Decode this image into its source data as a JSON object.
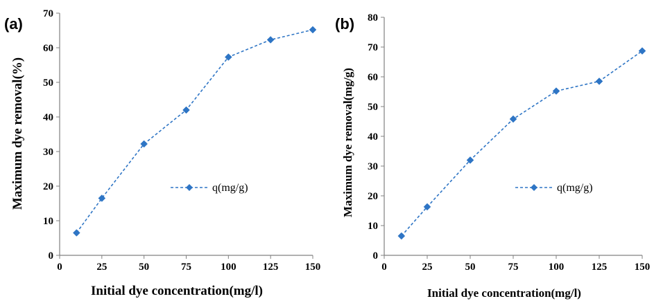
{
  "panels": [
    {
      "label": "(a)",
      "ylabel": "Maximum dye removal(%)",
      "xlabel": "Initial dye concentration(mg/l)",
      "legend": "q(mg/g)"
    },
    {
      "label": "(b)",
      "ylabel": "Maximum dye removal(mg/g)",
      "xlabel": "Initial dye concentration(mg/l)",
      "legend": "q(mg/g)"
    }
  ],
  "chart_data": [
    {
      "type": "line",
      "title": "",
      "xlabel": "Initial dye concentration(mg/l)",
      "ylabel": "Maximum dye removal(%)",
      "xlim": [
        0,
        150
      ],
      "ylim": [
        0,
        70
      ],
      "xticks": [
        "0",
        "25",
        "50",
        "75",
        "100",
        "125",
        "150"
      ],
      "yticks": [
        "0",
        "10",
        "20",
        "30",
        "40",
        "50",
        "60",
        "70"
      ],
      "grid": false,
      "legend_position": "center-right",
      "color": "#2E75C5",
      "line_style": "dashed",
      "marker": "diamond",
      "series": [
        {
          "name": "q(mg/g)",
          "x": [
            10,
            25,
            50,
            75,
            100,
            125,
            150
          ],
          "y": [
            6.5,
            16.5,
            32.2,
            42.0,
            57.3,
            62.3,
            65.2
          ]
        }
      ]
    },
    {
      "type": "line",
      "title": "",
      "xlabel": "Initial dye concentration(mg/l)",
      "ylabel": "Maximum dye removal(mg/g)",
      "xlim": [
        0,
        150
      ],
      "ylim": [
        0,
        80
      ],
      "xticks": [
        "0",
        "25",
        "50",
        "75",
        "100",
        "125",
        "150"
      ],
      "yticks": [
        "0",
        "10",
        "20",
        "30",
        "40",
        "50",
        "60",
        "70",
        "80"
      ],
      "grid": false,
      "legend_position": "center-right",
      "color": "#2E75C5",
      "line_style": "dashed",
      "marker": "diamond",
      "series": [
        {
          "name": "q(mg/g)",
          "x": [
            10,
            25,
            50,
            75,
            100,
            125,
            150
          ],
          "y": [
            6.5,
            16.3,
            32.0,
            45.8,
            55.2,
            58.5,
            68.7
          ]
        }
      ]
    }
  ]
}
